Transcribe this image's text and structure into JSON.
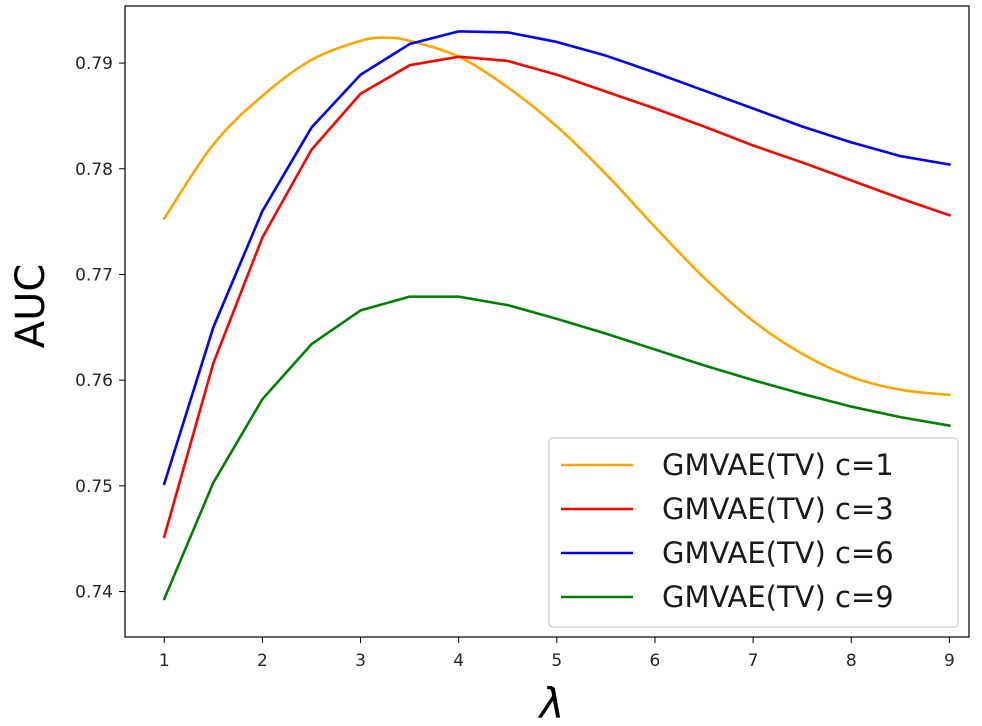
{
  "chart_data": {
    "type": "line",
    "title": "",
    "xlabel": "λ",
    "ylabel": "AUC",
    "xlim": [
      0.6,
      9.2
    ],
    "ylim": [
      0.7357,
      0.7954
    ],
    "xticks": [
      1,
      2,
      3,
      4,
      5,
      6,
      7,
      8,
      9
    ],
    "xtick_labels": [
      "1",
      "2",
      "3",
      "4",
      "5",
      "6",
      "7",
      "8",
      "9"
    ],
    "yticks": [
      0.74,
      0.75,
      0.76,
      0.77,
      0.78,
      0.79
    ],
    "ytick_labels": [
      "0.74",
      "0.75",
      "0.76",
      "0.77",
      "0.78",
      "0.79"
    ],
    "grid": false,
    "legend_position": "lower-right",
    "series": [
      {
        "name": "GMVAE(TV) c=1",
        "color": "#ffa500",
        "smooth": true,
        "x": [
          1,
          1.5,
          2,
          2.5,
          3,
          3.25,
          3.5,
          4,
          4.5,
          5,
          5.5,
          6,
          6.5,
          7,
          7.5,
          8,
          8.5,
          9
        ],
        "y": [
          0.7753,
          0.7823,
          0.7869,
          0.7903,
          0.7921,
          0.7924,
          0.7921,
          0.7906,
          0.7877,
          0.784,
          0.7795,
          0.7745,
          0.7697,
          0.7656,
          0.7625,
          0.7603,
          0.7591,
          0.7586
        ]
      },
      {
        "name": "GMVAE(TV) c=3",
        "color": "#ff0000",
        "smooth": false,
        "x": [
          1,
          1.5,
          2,
          2.5,
          3,
          3.5,
          4,
          4.5,
          5,
          5.5,
          6,
          6.5,
          7,
          7.5,
          8,
          8.5,
          9
        ],
        "y": [
          0.7452,
          0.7616,
          0.7735,
          0.7818,
          0.7871,
          0.7898,
          0.7906,
          0.7902,
          0.7889,
          0.7873,
          0.7857,
          0.784,
          0.7822,
          0.7806,
          0.7789,
          0.7772,
          0.7756
        ]
      },
      {
        "name": "GMVAE(TV) c=6",
        "color": "#0000ff",
        "smooth": false,
        "x": [
          1,
          1.5,
          2,
          2.5,
          3,
          3.5,
          4,
          4.5,
          5,
          5.5,
          6,
          6.5,
          7,
          7.5,
          8,
          8.5,
          9
        ],
        "y": [
          0.7502,
          0.765,
          0.776,
          0.7839,
          0.7889,
          0.7918,
          0.793,
          0.7929,
          0.792,
          0.7907,
          0.7891,
          0.7874,
          0.7857,
          0.784,
          0.7825,
          0.7812,
          0.7804
        ]
      },
      {
        "name": "GMVAE(TV) c=9",
        "color": "#008000",
        "smooth": false,
        "x": [
          1,
          1.5,
          2,
          2.5,
          3,
          3.5,
          4,
          4.5,
          5,
          5.5,
          6,
          6.5,
          7,
          7.5,
          8,
          8.5,
          9
        ],
        "y": [
          0.7393,
          0.7503,
          0.7582,
          0.7634,
          0.7666,
          0.7679,
          0.7679,
          0.7671,
          0.7658,
          0.7644,
          0.7629,
          0.7614,
          0.76,
          0.7587,
          0.7575,
          0.7565,
          0.7557
        ]
      }
    ]
  }
}
